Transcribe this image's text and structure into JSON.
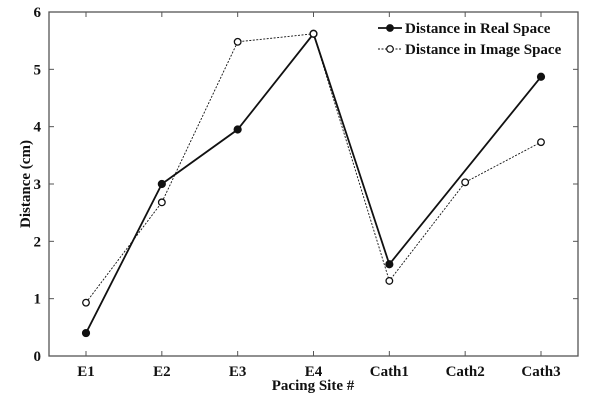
{
  "chart_data": {
    "type": "line",
    "title": "",
    "xlabel": "Pacing Site #",
    "ylabel": "Distance (cm)",
    "categories": [
      "E1",
      "E2",
      "E3",
      "E4",
      "Cath1",
      "Cath2",
      "Cath3"
    ],
    "ylim": [
      0,
      6
    ],
    "yticks": [
      0,
      1,
      2,
      3,
      4,
      5,
      6
    ],
    "grid": false,
    "legend_position": "upper right",
    "series": [
      {
        "name": "Distance in Real Space",
        "style": "solid line, filled circle markers",
        "values": [
          0.4,
          3.0,
          3.95,
          5.62,
          1.6,
          null,
          4.87
        ]
      },
      {
        "name": "Distance in Image Space",
        "style": "dotted line, open circle markers",
        "values": [
          0.93,
          2.68,
          5.48,
          5.62,
          1.31,
          3.03,
          3.73
        ]
      }
    ]
  },
  "colors": {
    "line": "#111111",
    "axis": "#555555",
    "background": "#ffffff"
  }
}
